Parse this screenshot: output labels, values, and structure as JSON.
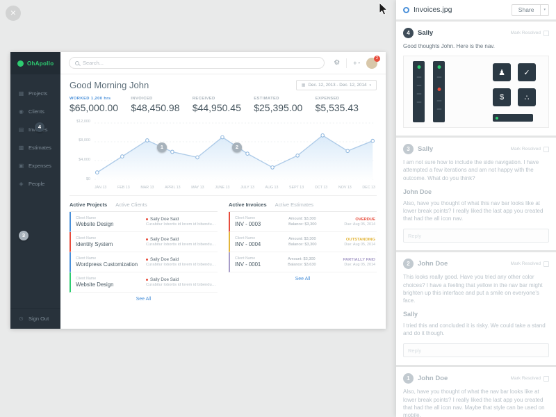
{
  "overlay": {
    "close_glyph": "×"
  },
  "viewer": {
    "title": "Invoices.jpg",
    "share_label": "Share",
    "share_caret": "▾"
  },
  "markers": [
    {
      "n": "1"
    },
    {
      "n": "2"
    },
    {
      "n": "3"
    },
    {
      "n": "4"
    }
  ],
  "comments": [
    {
      "number": "4",
      "author": "Sally",
      "resolve_label": "Mark Resolved",
      "text": "Good thoughts John. Here is the nav.",
      "thumb_icons": [
        "♟",
        "✓",
        "$",
        "∴"
      ]
    },
    {
      "number": "3",
      "author": "Sally",
      "resolve_label": "Mark Resolved",
      "text": "I am not sure how to include the side navigation. I have attempted a few iterations and am not happy with the outcome. What do you think?",
      "reply_author": "John Doe",
      "reply_text": "Also, have you thought of what this nav bar looks like at lower break points? I really liked the last app you created that had the all icon nav.",
      "reply_placeholder": "Reply"
    },
    {
      "number": "2",
      "author": "John Doe",
      "resolve_label": "Mark Resolved",
      "text": "This looks really good. Have you tried any other color choices? I have a feeling that yellow in the nav bar might brighten up this interface and put a smile on everyone's face.",
      "reply_author": "Sally",
      "reply_text": "I tried this and concluded it is risky. We could take a stand and do it though.",
      "reply_placeholder": "Reply"
    },
    {
      "number": "1",
      "author": "John Doe",
      "resolve_label": "Mark Resolved",
      "text": "Also, have you thought of what the nav bar looks like at lower break points? I really liked the last app you created that had the all icon nav. Maybe that style can be used on mobile."
    }
  ],
  "dashboard": {
    "logo": "OhApollo",
    "nav": [
      {
        "label": "Projects",
        "icon": "▦"
      },
      {
        "label": "Clients",
        "icon": "◉"
      },
      {
        "label": "Invoices",
        "icon": "▤"
      },
      {
        "label": "Estimates",
        "icon": "▩"
      },
      {
        "label": "Expenses",
        "icon": "▣"
      },
      {
        "label": "People",
        "icon": "◈"
      }
    ],
    "sign_out": {
      "label": "Sign Out",
      "icon": "⊙"
    },
    "topbar": {
      "search_placeholder": "Search...",
      "gear_icon": "⚙",
      "plus_label": "+",
      "caret": "▾",
      "notification_count": "2"
    },
    "greeting": "Good Morning John",
    "date_range": "Dec. 12, 2013 - Dec. 12, 2014",
    "stats": [
      {
        "label": "WORKED 1,200 hrs",
        "value": "$65,000.00"
      },
      {
        "label": "INVOICED",
        "value": "$48,450.98"
      },
      {
        "label": "RECEIVED",
        "value": "$44,950.45"
      },
      {
        "label": "ESTIMATED",
        "value": "$25,395.00"
      },
      {
        "label": "EXPENSED",
        "value": "$5,535.43"
      }
    ],
    "projects_panel": {
      "tab_active": "Active Projects",
      "tab_inactive": "Active Clients",
      "rows": [
        {
          "client": "Client Name",
          "name": "Website Design",
          "author": "Sally Doe Said",
          "excerpt": "Curabitur lobortis id lorem id bibendum...",
          "color": "#4a90d9"
        },
        {
          "client": "Client Name",
          "name": "Identity System",
          "author": "Sally Doe Said",
          "excerpt": "Curabitur lobortis id lorem id bibendum...",
          "color": "#e74c3c"
        },
        {
          "client": "Client Name",
          "name": "Wordpress Customization",
          "author": "Sally Doe Said",
          "excerpt": "Curabitur lobortis id lorem id bibendum...",
          "color": "#4a90d9"
        },
        {
          "client": "Client Name",
          "name": "Website Design",
          "author": "Sally Doe Said",
          "excerpt": "Curabitur lobortis id lorem id bibendum...",
          "color": "#2ecc71"
        }
      ],
      "see_all": "See All"
    },
    "invoices_panel": {
      "tab_active": "Active Invoices",
      "tab_inactive": "Active Estimates",
      "rows": [
        {
          "client": "Client Name",
          "number": "INV - 0003",
          "amount": "Amount: $3,300",
          "balance": "Balance: $3,300",
          "status": "OVERDUE",
          "status_color": "#e74c3c",
          "due": "Due: Aug 05, 2014"
        },
        {
          "client": "Client Name",
          "number": "INV - 0004",
          "amount": "Amount: $3,300",
          "balance": "Balance: $3,300",
          "status": "OUTSTANDING",
          "status_color": "#e3b53a",
          "due": "Due: Aug 05, 2014"
        },
        {
          "client": "Client Name",
          "number": "INV - 0001",
          "amount": "Amount: $3,300",
          "balance": "Balance: $3,630",
          "status": "PARTIALLY PAID",
          "status_color": "#a79cc8",
          "due": "Due: Aug 05, 2014"
        }
      ],
      "see_all": "See All"
    }
  },
  "chart_data": {
    "type": "area",
    "x": [
      "JAN 13",
      "FEB 13",
      "MAR 13",
      "APRIL 13",
      "MAY 13",
      "JUNE 13",
      "JULY 13",
      "AUG 13",
      "SEPT 13",
      "OCT 13",
      "NOV 13",
      "DEC 13"
    ],
    "values": [
      1500,
      5000,
      8500,
      6000,
      4800,
      9200,
      5600,
      2600,
      5200,
      9600,
      6200,
      8400
    ],
    "ylabels": [
      "$12,000",
      "$8,000",
      "$4,000",
      "$0"
    ],
    "ylim": [
      0,
      12000
    ],
    "line_color": "#aecbe8",
    "fill_color": "#d4e7f8",
    "grid": true,
    "legend": "none",
    "title": ""
  }
}
